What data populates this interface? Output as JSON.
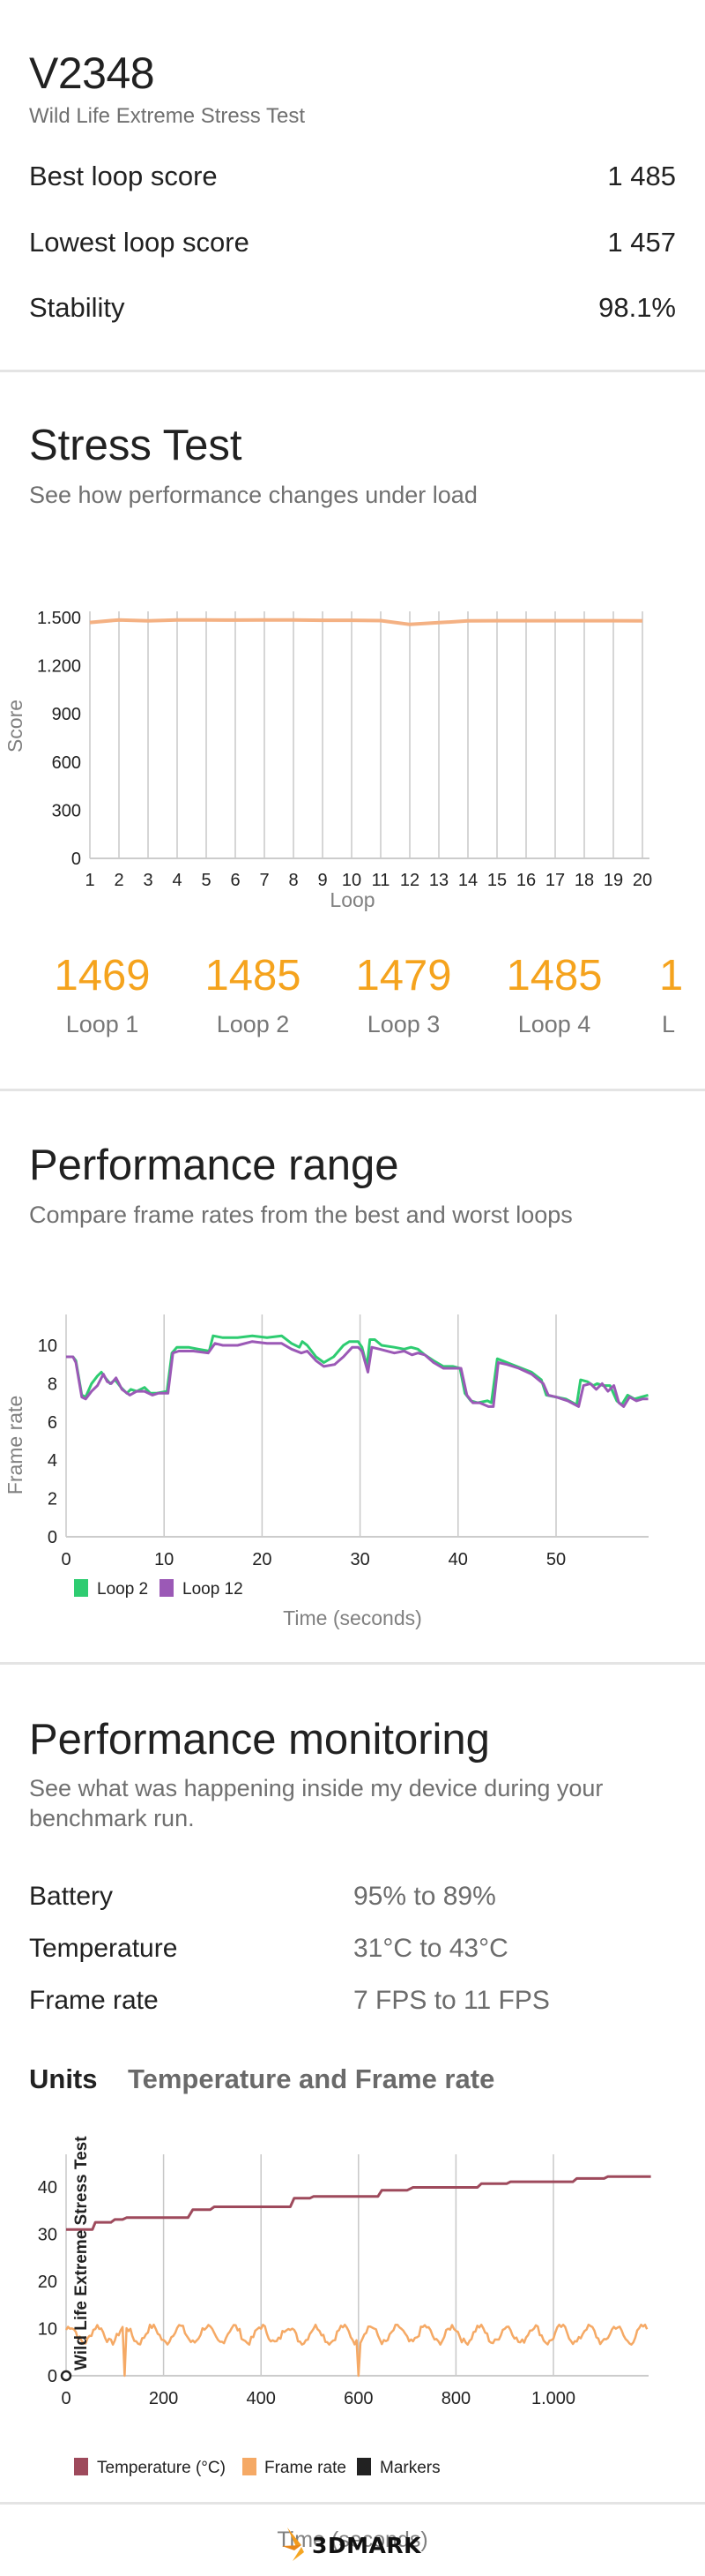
{
  "header": {
    "device": "V2348",
    "test_name": "Wild Life Extreme Stress Test"
  },
  "summary": [
    {
      "label": "Best loop score",
      "value": "1 485"
    },
    {
      "label": "Lowest loop score",
      "value": "1 457"
    },
    {
      "label": "Stability",
      "value": "98.1%"
    }
  ],
  "stress_test": {
    "title": "Stress Test",
    "subtitle": "See how performance changes under load",
    "loops": [
      {
        "score": "1469",
        "label": "Loop 1"
      },
      {
        "score": "1485",
        "label": "Loop 2"
      },
      {
        "score": "1479",
        "label": "Loop 3"
      },
      {
        "score": "1485",
        "label": "Loop 4"
      },
      {
        "score": "1",
        "label": "L"
      }
    ]
  },
  "performance_range": {
    "title": "Performance range",
    "subtitle": "Compare frame rates from the best and worst loops"
  },
  "performance_monitoring": {
    "title": "Performance monitoring",
    "subtitle_line1": "See what was happening inside my device during your",
    "subtitle_line2": "benchmark run.",
    "stats": [
      {
        "label": "Battery",
        "value": "95% to 89%"
      },
      {
        "label": "Temperature",
        "value": "31°C to 43°C"
      },
      {
        "label": "Frame rate",
        "value": "7 FPS to 11 FPS"
      }
    ],
    "units_label": "Units",
    "units_value": "Temperature and Frame rate"
  },
  "footer": {
    "logo_text": "3DMARK",
    "logo_icon": "3dmark-logo-icon"
  },
  "colors": {
    "accent_orange": "#F5A31D",
    "stress_line": "#F4B183",
    "loop_best": "#2ECC71",
    "loop_worst": "#9B59B6",
    "temperature": "#9E4A5C",
    "frame_rate": "#F5A965",
    "markers": "#222222",
    "grid": "#c8c8c8"
  },
  "chart_data": [
    {
      "type": "line",
      "title": "Stress Test",
      "xlabel": "Loop",
      "ylabel": "Score",
      "x": [
        1,
        2,
        3,
        4,
        5,
        6,
        7,
        8,
        9,
        10,
        11,
        12,
        13,
        14,
        15,
        16,
        17,
        18,
        19,
        20
      ],
      "x_tick_labels": [
        "1",
        "2",
        "3",
        "4",
        "5",
        "6",
        "7",
        "8",
        "9",
        "10",
        "11",
        "12",
        "13",
        "14",
        "15",
        "16",
        "17",
        "18",
        "19",
        "20"
      ],
      "y_ticks": [
        0,
        300,
        600,
        900,
        1200,
        1500
      ],
      "y_tick_labels": [
        "0",
        "300",
        "600",
        "900",
        "1.200",
        "1.500"
      ],
      "ylim": [
        0,
        1650
      ],
      "grid": "vertical",
      "series": [
        {
          "name": "Score",
          "color": "#F4B183",
          "values": [
            1469,
            1485,
            1479,
            1485,
            1485,
            1484,
            1485,
            1485,
            1483,
            1483,
            1481,
            1457,
            1468,
            1479,
            1480,
            1480,
            1480,
            1480,
            1480,
            1479
          ]
        }
      ]
    },
    {
      "type": "line",
      "title": "Performance range",
      "xlabel": "Time (seconds)",
      "ylabel": "Frame rate",
      "x_ticks": [
        0,
        10,
        20,
        30,
        40,
        50
      ],
      "y_ticks": [
        0,
        2,
        4,
        6,
        8,
        10
      ],
      "xlim": [
        0,
        59.5
      ],
      "ylim": [
        0,
        11.6
      ],
      "grid": "vertical",
      "legend_position": "bottom-left",
      "series": [
        {
          "name": "Loop 2",
          "color": "#2ECC71",
          "points": [
            [
              0,
              9.4
            ],
            [
              0.7,
              9.4
            ],
            [
              1,
              9.2
            ],
            [
              1.6,
              7.4
            ],
            [
              2,
              7.3
            ],
            [
              2.6,
              8.0
            ],
            [
              3.2,
              8.4
            ],
            [
              3.6,
              8.6
            ],
            [
              4,
              8.3
            ],
            [
              4.5,
              8.0
            ],
            [
              5,
              8.2
            ],
            [
              5.6,
              7.8
            ],
            [
              6.2,
              7.5
            ],
            [
              6.6,
              7.7
            ],
            [
              7.2,
              7.6
            ],
            [
              8,
              7.8
            ],
            [
              8.6,
              7.5
            ],
            [
              9.2,
              7.5
            ],
            [
              10.3,
              7.6
            ],
            [
              10.8,
              9.6
            ],
            [
              11.3,
              9.9
            ],
            [
              12.5,
              9.9
            ],
            [
              13.5,
              9.8
            ],
            [
              14.6,
              9.7
            ],
            [
              15,
              10.5
            ],
            [
              16,
              10.4
            ],
            [
              17.5,
              10.4
            ],
            [
              19,
              10.5
            ],
            [
              20.5,
              10.4
            ],
            [
              22,
              10.5
            ],
            [
              23,
              10.1
            ],
            [
              23.8,
              9.9
            ],
            [
              24.1,
              10.2
            ],
            [
              24.6,
              10.0
            ],
            [
              25.5,
              9.4
            ],
            [
              26.3,
              9.1
            ],
            [
              27.3,
              9.4
            ],
            [
              28.3,
              10.0
            ],
            [
              28.9,
              10.2
            ],
            [
              29.8,
              10.2
            ],
            [
              30.2,
              9.9
            ],
            [
              30.7,
              8.9
            ],
            [
              31,
              10.3
            ],
            [
              31.5,
              10.3
            ],
            [
              32.2,
              10.0
            ],
            [
              33.5,
              9.9
            ],
            [
              34.5,
              9.8
            ],
            [
              35.2,
              9.9
            ],
            [
              35.9,
              9.8
            ],
            [
              36.6,
              9.5
            ],
            [
              37.5,
              9.2
            ],
            [
              38.5,
              8.9
            ],
            [
              39.5,
              8.9
            ],
            [
              40.2,
              8.8
            ],
            [
              40.7,
              7.5
            ],
            [
              41.3,
              7.1
            ],
            [
              42,
              7.0
            ],
            [
              43,
              7.1
            ],
            [
              43.4,
              7.0
            ],
            [
              44,
              9.3
            ],
            [
              45,
              9.1
            ],
            [
              46,
              8.9
            ],
            [
              47.5,
              8.6
            ],
            [
              48.5,
              8.2
            ],
            [
              49,
              7.4
            ],
            [
              50,
              7.3
            ],
            [
              51,
              7.2
            ],
            [
              52.1,
              6.9
            ],
            [
              52.5,
              8.2
            ],
            [
              53.2,
              8.1
            ],
            [
              53.8,
              7.9
            ],
            [
              54.2,
              8.0
            ],
            [
              54.8,
              7.9
            ],
            [
              55.5,
              7.9
            ],
            [
              56.2,
              7.1
            ],
            [
              56.7,
              6.9
            ],
            [
              57.3,
              7.4
            ],
            [
              58,
              7.2
            ],
            [
              58.7,
              7.3
            ],
            [
              59.4,
              7.4
            ]
          ]
        },
        {
          "name": "Loop 12",
          "color": "#9B59B6",
          "points": [
            [
              0,
              9.4
            ],
            [
              0.7,
              9.4
            ],
            [
              1,
              9.1
            ],
            [
              1.6,
              7.3
            ],
            [
              2,
              7.2
            ],
            [
              2.6,
              7.6
            ],
            [
              3.2,
              7.9
            ],
            [
              3.8,
              8.5
            ],
            [
              4.2,
              8.1
            ],
            [
              4.6,
              8.0
            ],
            [
              5.1,
              8.3
            ],
            [
              5.7,
              7.7
            ],
            [
              6.5,
              7.4
            ],
            [
              7.2,
              7.6
            ],
            [
              8,
              7.6
            ],
            [
              8.8,
              7.4
            ],
            [
              9.4,
              7.5
            ],
            [
              10.4,
              7.5
            ],
            [
              10.9,
              9.6
            ],
            [
              11.5,
              9.7
            ],
            [
              13,
              9.7
            ],
            [
              14.5,
              9.6
            ],
            [
              15.2,
              10.1
            ],
            [
              16,
              10.0
            ],
            [
              17.5,
              10.0
            ],
            [
              19,
              10.2
            ],
            [
              20.5,
              10.1
            ],
            [
              22,
              10.1
            ],
            [
              23,
              9.8
            ],
            [
              24,
              9.6
            ],
            [
              24.6,
              9.7
            ],
            [
              25.5,
              9.2
            ],
            [
              26.3,
              8.9
            ],
            [
              27.4,
              9.0
            ],
            [
              28.3,
              9.4
            ],
            [
              29.2,
              9.9
            ],
            [
              29.8,
              9.9
            ],
            [
              30.2,
              9.7
            ],
            [
              30.8,
              8.6
            ],
            [
              31.2,
              9.9
            ],
            [
              32,
              9.8
            ],
            [
              33.5,
              9.6
            ],
            [
              34.5,
              9.7
            ],
            [
              35.3,
              9.5
            ],
            [
              35.9,
              9.6
            ],
            [
              36.6,
              9.5
            ],
            [
              37.5,
              9.1
            ],
            [
              38.5,
              8.8
            ],
            [
              39.5,
              8.8
            ],
            [
              40.3,
              8.8
            ],
            [
              40.9,
              7.4
            ],
            [
              41.5,
              7.0
            ],
            [
              42.2,
              7.0
            ],
            [
              43.1,
              6.8
            ],
            [
              43.6,
              6.8
            ],
            [
              44.1,
              9.1
            ],
            [
              45,
              9.0
            ],
            [
              46.2,
              8.8
            ],
            [
              47.5,
              8.5
            ],
            [
              48.7,
              8.0
            ],
            [
              49.2,
              7.4
            ],
            [
              50,
              7.3
            ],
            [
              51.2,
              7.1
            ],
            [
              52.3,
              6.8
            ],
            [
              52.8,
              7.9
            ],
            [
              53.5,
              8.0
            ],
            [
              54.1,
              7.7
            ],
            [
              54.7,
              8.0
            ],
            [
              55.3,
              7.6
            ],
            [
              55.9,
              7.9
            ],
            [
              56.4,
              7.0
            ],
            [
              56.9,
              6.8
            ],
            [
              57.5,
              7.3
            ],
            [
              58.2,
              7.1
            ],
            [
              58.8,
              7.2
            ],
            [
              59.4,
              7.2
            ]
          ]
        }
      ]
    },
    {
      "type": "line",
      "title": "Temperature and Frame rate",
      "xlabel": "Time (seconds)",
      "x_ticks": [
        0,
        200,
        400,
        600,
        800,
        1000
      ],
      "x_tick_labels": [
        "0",
        "200",
        "400",
        "600",
        "800",
        "1.000"
      ],
      "y_ticks": [
        0,
        10,
        20,
        30,
        40
      ],
      "xlim": [
        0,
        1195
      ],
      "ylim": [
        0,
        47
      ],
      "grid": "vertical",
      "legend_position": "bottom-left",
      "annotations": [
        "Wild Life Extreme Stress Test"
      ],
      "series": [
        {
          "name": "Temperature (°C)",
          "color": "#9E4A5C",
          "points": [
            [
              0,
              31
            ],
            [
              27,
              31
            ],
            [
              30,
              32.5
            ],
            [
              46,
              32.5
            ],
            [
              50,
              33.1
            ],
            [
              58,
              33.1
            ],
            [
              62,
              33.5
            ],
            [
              125,
              33.5
            ],
            [
              130,
              35.2
            ],
            [
              148,
              35.2
            ],
            [
              152,
              35.8
            ],
            [
              230,
              35.8
            ],
            [
              234,
              37.6
            ],
            [
              250,
              37.6
            ],
            [
              254,
              38
            ],
            [
              320,
              38
            ],
            [
              324,
              39.3
            ],
            [
              350,
              39.3
            ],
            [
              356,
              39.9
            ],
            [
              422,
              39.9
            ],
            [
              426,
              40.7
            ],
            [
              452,
              40.7
            ],
            [
              456,
              41.1
            ],
            [
              520,
              41.1
            ],
            [
              524,
              41.8
            ],
            [
              552,
              41.8
            ],
            [
              556,
              42.2
            ],
            [
              600,
              42.2
            ]
          ],
          "x_scale_note": "points in units of (seconds/2)"
        },
        {
          "name": "Frame rate",
          "color": "#F5A965",
          "min": 0,
          "typical_range": [
            7,
            10.5
          ],
          "dips_to_zero_at_seconds": [
            119,
            600
          ]
        },
        {
          "name": "Markers",
          "color": "#222222",
          "points": [
            [
              0,
              0
            ]
          ]
        }
      ]
    }
  ]
}
